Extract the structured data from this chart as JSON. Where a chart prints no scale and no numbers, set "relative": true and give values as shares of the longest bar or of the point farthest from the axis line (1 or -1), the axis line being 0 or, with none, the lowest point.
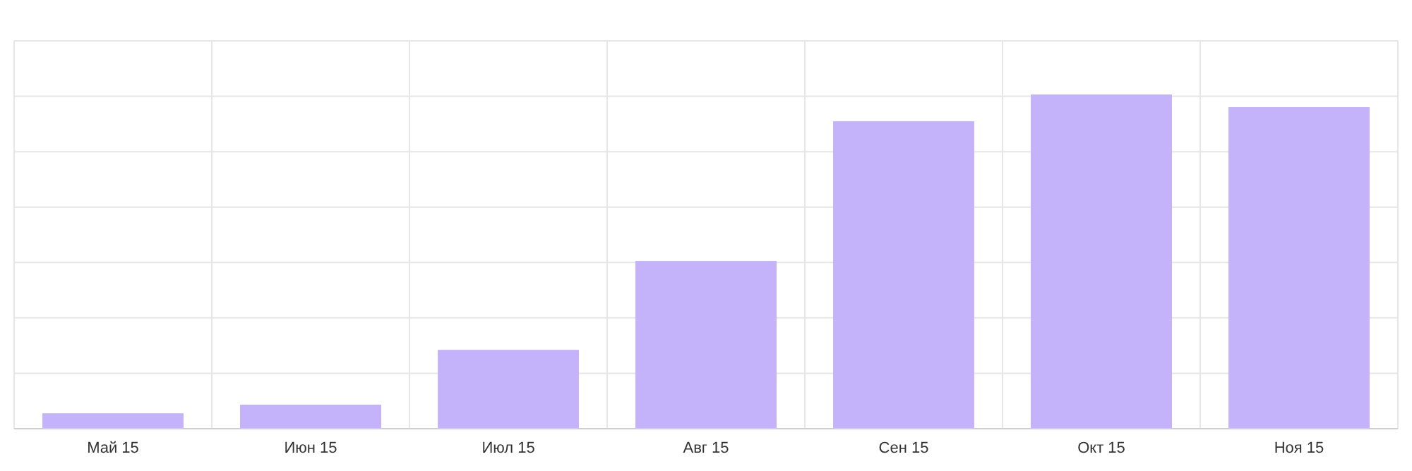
{
  "chart_data": {
    "type": "bar",
    "relative": true,
    "categories": [
      "Май 15",
      "Июн 15",
      "Июл 15",
      "Авг 15",
      "Сен 15",
      "Окт 15",
      "Ноя 15"
    ],
    "values": [
      0.046,
      0.072,
      0.236,
      0.502,
      0.92,
      1,
      0.962
    ],
    "color": "#c4b3fb",
    "grid": true
  }
}
